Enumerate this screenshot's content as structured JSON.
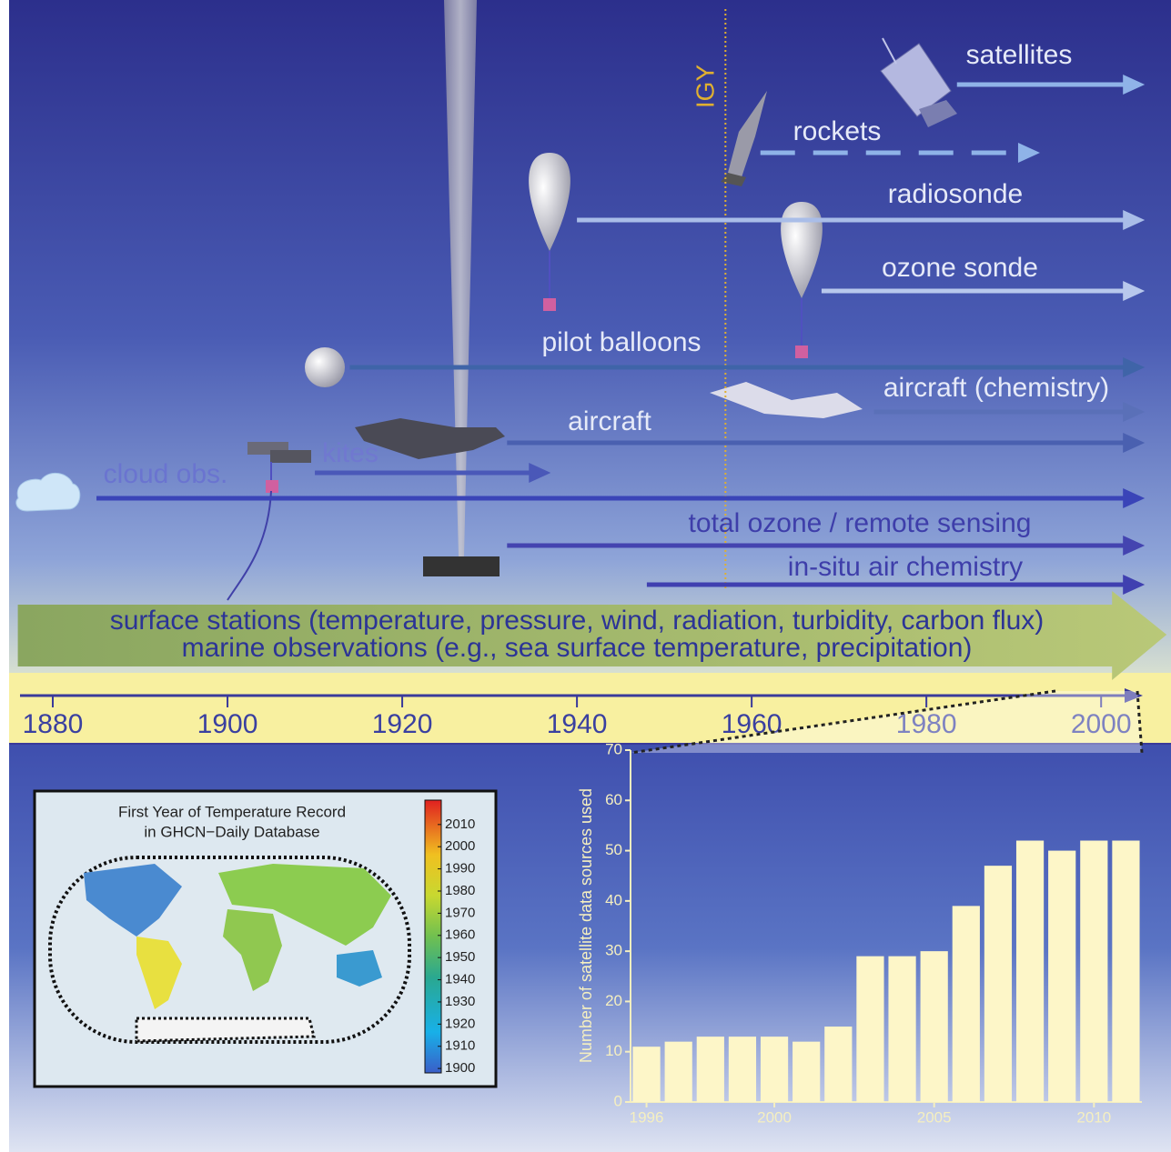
{
  "chart_data": [
    {
      "type": "timeline",
      "xlim": [
        1875,
        2008
      ],
      "xticks": [
        1880,
        1900,
        1920,
        1940,
        1960,
        1980,
        2000
      ],
      "marker": {
        "label": "IGY",
        "value": 1957
      },
      "rows": [
        {
          "name": "satellites",
          "start": 1983.5,
          "end": 2005,
          "color": "#8fb3e8"
        },
        {
          "name": "rockets",
          "start": 1961,
          "end": 1993,
          "dashed": true,
          "color": "#8fb3e8"
        },
        {
          "name": "radiosonde",
          "start": 1940,
          "end": 2005,
          "color": "#a9bde8"
        },
        {
          "name": "ozone sonde",
          "start": 1968,
          "end": 2005,
          "color": "#b8c8ec"
        },
        {
          "name": "pilot balloons",
          "start": 1914,
          "end": 2005,
          "color": "#3f64a8"
        },
        {
          "name": "aircraft (chemistry)",
          "start": 1974,
          "end": 2005,
          "color": "#5a70b8"
        },
        {
          "name": "aircraft",
          "start": 1932,
          "end": 2005,
          "color": "#4a60b0"
        },
        {
          "name": "kites",
          "start": 1910,
          "end": 1937,
          "color": "#4a58b8"
        },
        {
          "name": "cloud obs.",
          "start": 1885,
          "end": 2005,
          "color": "#3a44b8"
        },
        {
          "name": "total ozone / remote sensing",
          "start": 1932,
          "end": 2005,
          "color": "#4444b0"
        },
        {
          "name": "in-situ air chemistry",
          "start": 1948,
          "end": 2005,
          "color": "#4040b0"
        }
      ],
      "banner": {
        "lines": [
          "surface stations (temperature, pressure, wind, radiation, turbidity, carbon flux)",
          "marine observations (e.g., sea surface temperature, precipitation)"
        ],
        "start": 1876,
        "end": 2007.5
      }
    },
    {
      "type": "bar",
      "y_label": "Number of satellite data sources used",
      "x": [
        1996,
        1997,
        1998,
        1999,
        2000,
        2001,
        2002,
        2003,
        2004,
        2005,
        2006,
        2007,
        2008,
        2009,
        2010,
        2011
      ],
      "values": [
        11,
        12,
        13,
        13,
        13,
        12,
        15,
        29,
        29,
        30,
        39,
        47,
        52,
        50,
        52,
        52
      ],
      "color": "#fdf6c8",
      "xlim": [
        1995.5,
        2011.5
      ],
      "xticks": [
        1996,
        2000,
        2005,
        2010
      ],
      "ylim": [
        0,
        70
      ],
      "yticks": [
        0,
        10,
        20,
        30,
        40,
        50,
        60,
        70
      ]
    },
    {
      "type": "map",
      "title": [
        "First Year of Temperature Record",
        "in GHCN−Daily Database"
      ],
      "colorbar": {
        "lim": [
          1898,
          2021
        ],
        "ticks": [
          1900,
          1910,
          1920,
          1930,
          1940,
          1950,
          1960,
          1970,
          1980,
          1990,
          2000,
          2010
        ]
      }
    }
  ]
}
